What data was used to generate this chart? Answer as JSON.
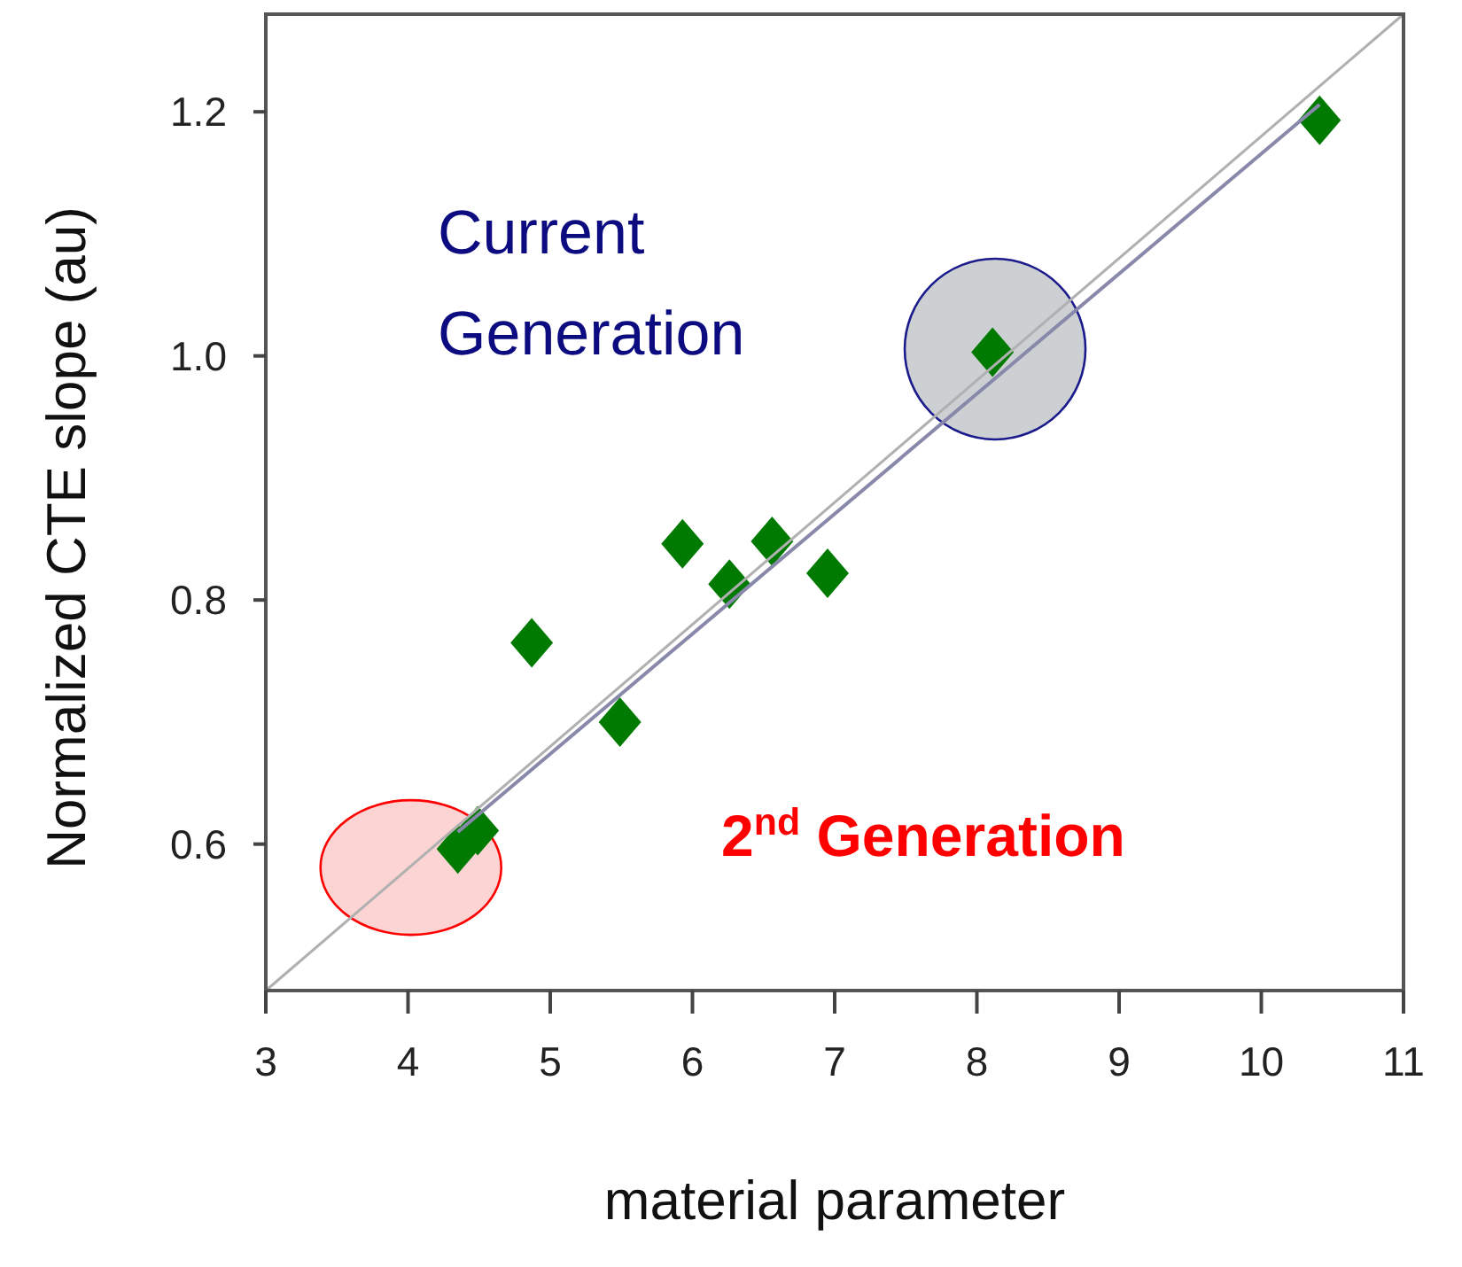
{
  "chart_data": {
    "type": "scatter",
    "xlabel": "material parameter",
    "ylabel": "Normalized CTE slope (au)",
    "xlim": [
      3,
      11
    ],
    "xticks": [
      3,
      4,
      5,
      6,
      7,
      8,
      9,
      10,
      11
    ],
    "ylim": [
      0.48,
      1.28
    ],
    "yticks": [
      0.6,
      0.8,
      {
        "value": 1,
        "label": "1.0"
      },
      1.2
    ],
    "grid": false,
    "series": [
      {
        "type": "line",
        "x": [
          3,
          11
        ],
        "values": [
          0.48,
          1.28
        ],
        "color": "#b0b0b0"
      },
      {
        "type": "line",
        "x": [
          4.35,
          10.41
        ],
        "values": [
          0.61,
          1.206
        ],
        "color": "#8888aa"
      },
      {
        "x": [
          10.41,
          8.11,
          5.93,
          6.56,
          6.26,
          6.95,
          4.87,
          5.49,
          4.35,
          4.49
        ],
        "values": [
          1.193,
          1.003,
          0.846,
          0.848,
          0.813,
          0.822,
          0.765,
          0.7,
          0.596,
          0.611
        ],
        "color": "#007a00",
        "marker": "diamond"
      }
    ],
    "annotations": [
      "Current\nGeneration",
      "2$^{nd}$ Generation"
    ]
  }
}
